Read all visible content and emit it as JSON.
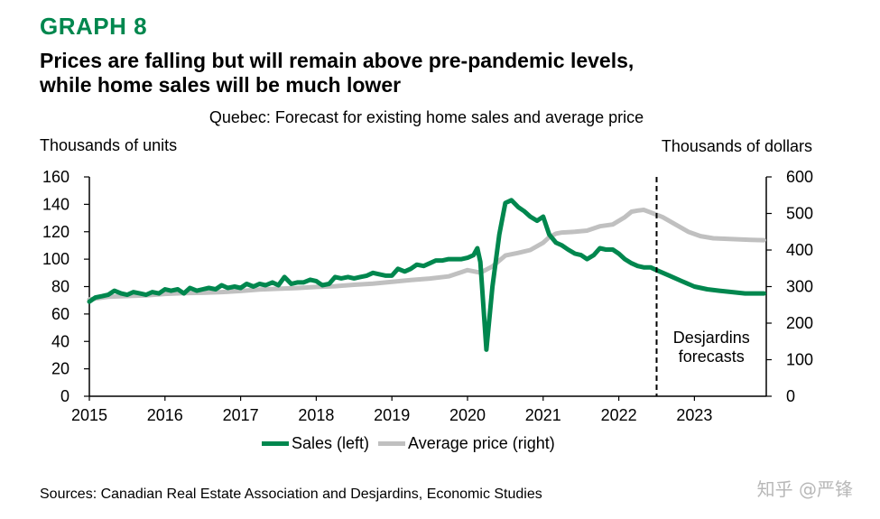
{
  "header": {
    "graph_label": "GRAPH 8",
    "title_line1": "Prices are falling but will remain above pre-pandemic levels,",
    "title_line2": "while home sales will be much lower"
  },
  "colors": {
    "sales": "#00874e",
    "price": "#c0c0c0",
    "green_title": "#00874e"
  },
  "chart_data": {
    "type": "line",
    "title": "Quebec: Forecast for existing home sales and average price",
    "ylabel_left": "Thousands of units",
    "ylabel_right": "Thousands of dollars",
    "ylim_left": [
      0,
      160
    ],
    "ylim_right": [
      0,
      600
    ],
    "yticks_left": [
      "0",
      "20",
      "40",
      "60",
      "80",
      "100",
      "120",
      "140",
      "160"
    ],
    "yticks_right": [
      "0",
      "100",
      "200",
      "300",
      "400",
      "500",
      "600"
    ],
    "xlim": [
      2015,
      2023.95
    ],
    "xticks": [
      "2015",
      "2016",
      "2017",
      "2018",
      "2019",
      "2020",
      "2021",
      "2022",
      "2023"
    ],
    "forecast_start": 2022.5,
    "forecast_label_line1": "Desjardins",
    "forecast_label_line2": "forecasts",
    "series": [
      {
        "name": "Sales (left)",
        "axis": "left",
        "points": [
          [
            2015.0,
            69
          ],
          [
            2015.08,
            72
          ],
          [
            2015.17,
            73
          ],
          [
            2015.25,
            74
          ],
          [
            2015.33,
            77
          ],
          [
            2015.42,
            75
          ],
          [
            2015.5,
            74
          ],
          [
            2015.58,
            76
          ],
          [
            2015.67,
            75
          ],
          [
            2015.75,
            74
          ],
          [
            2015.83,
            76
          ],
          [
            2015.92,
            75
          ],
          [
            2016.0,
            78
          ],
          [
            2016.08,
            77
          ],
          [
            2016.17,
            78
          ],
          [
            2016.25,
            75
          ],
          [
            2016.33,
            79
          ],
          [
            2016.42,
            77
          ],
          [
            2016.5,
            78
          ],
          [
            2016.58,
            79
          ],
          [
            2016.67,
            78
          ],
          [
            2016.75,
            81
          ],
          [
            2016.83,
            79
          ],
          [
            2016.92,
            80
          ],
          [
            2017.0,
            79
          ],
          [
            2017.08,
            82
          ],
          [
            2017.17,
            80
          ],
          [
            2017.25,
            82
          ],
          [
            2017.33,
            81
          ],
          [
            2017.42,
            83
          ],
          [
            2017.5,
            81
          ],
          [
            2017.58,
            87
          ],
          [
            2017.67,
            82
          ],
          [
            2017.75,
            83
          ],
          [
            2017.83,
            83
          ],
          [
            2017.92,
            85
          ],
          [
            2018.0,
            84
          ],
          [
            2018.08,
            81
          ],
          [
            2018.17,
            82
          ],
          [
            2018.25,
            87
          ],
          [
            2018.33,
            86
          ],
          [
            2018.42,
            87
          ],
          [
            2018.5,
            86
          ],
          [
            2018.58,
            87
          ],
          [
            2018.67,
            88
          ],
          [
            2018.75,
            90
          ],
          [
            2018.83,
            89
          ],
          [
            2018.92,
            88
          ],
          [
            2019.0,
            88
          ],
          [
            2019.08,
            93
          ],
          [
            2019.17,
            91
          ],
          [
            2019.25,
            93
          ],
          [
            2019.33,
            96
          ],
          [
            2019.42,
            95
          ],
          [
            2019.5,
            97
          ],
          [
            2019.58,
            99
          ],
          [
            2019.67,
            99
          ],
          [
            2019.75,
            100
          ],
          [
            2019.83,
            100
          ],
          [
            2019.92,
            100
          ],
          [
            2020.0,
            101
          ],
          [
            2020.08,
            103
          ],
          [
            2020.13,
            108
          ],
          [
            2020.17,
            98
          ],
          [
            2020.25,
            34
          ],
          [
            2020.33,
            80
          ],
          [
            2020.42,
            118
          ],
          [
            2020.5,
            141
          ],
          [
            2020.58,
            143
          ],
          [
            2020.67,
            138
          ],
          [
            2020.75,
            135
          ],
          [
            2020.83,
            131
          ],
          [
            2020.92,
            128
          ],
          [
            2021.0,
            131
          ],
          [
            2021.08,
            118
          ],
          [
            2021.17,
            112
          ],
          [
            2021.25,
            110
          ],
          [
            2021.33,
            107
          ],
          [
            2021.42,
            104
          ],
          [
            2021.5,
            103
          ],
          [
            2021.58,
            100
          ],
          [
            2021.67,
            103
          ],
          [
            2021.75,
            108
          ],
          [
            2021.83,
            107
          ],
          [
            2021.92,
            107
          ],
          [
            2022.0,
            104
          ],
          [
            2022.08,
            100
          ],
          [
            2022.17,
            97
          ],
          [
            2022.25,
            95
          ],
          [
            2022.33,
            94
          ],
          [
            2022.42,
            94
          ],
          [
            2022.5,
            92
          ],
          [
            2022.67,
            88
          ],
          [
            2022.83,
            84
          ],
          [
            2023.0,
            80
          ],
          [
            2023.17,
            78
          ],
          [
            2023.33,
            77
          ],
          [
            2023.5,
            76
          ],
          [
            2023.67,
            75
          ],
          [
            2023.92,
            75
          ]
        ]
      },
      {
        "name": "Average price (right)",
        "axis": "right",
        "points": [
          [
            2015.0,
            265
          ],
          [
            2015.25,
            272
          ],
          [
            2015.5,
            274
          ],
          [
            2015.75,
            276
          ],
          [
            2016.0,
            280
          ],
          [
            2016.25,
            282
          ],
          [
            2016.5,
            283
          ],
          [
            2016.75,
            285
          ],
          [
            2017.0,
            288
          ],
          [
            2017.25,
            292
          ],
          [
            2017.5,
            294
          ],
          [
            2017.75,
            296
          ],
          [
            2018.0,
            299
          ],
          [
            2018.25,
            301
          ],
          [
            2018.5,
            305
          ],
          [
            2018.75,
            308
          ],
          [
            2019.0,
            313
          ],
          [
            2019.25,
            318
          ],
          [
            2019.5,
            322
          ],
          [
            2019.75,
            328
          ],
          [
            2020.0,
            345
          ],
          [
            2020.17,
            338
          ],
          [
            2020.33,
            355
          ],
          [
            2020.5,
            385
          ],
          [
            2020.67,
            392
          ],
          [
            2020.83,
            400
          ],
          [
            2021.0,
            420
          ],
          [
            2021.08,
            435
          ],
          [
            2021.17,
            445
          ],
          [
            2021.25,
            448
          ],
          [
            2021.42,
            450
          ],
          [
            2021.58,
            453
          ],
          [
            2021.75,
            465
          ],
          [
            2021.92,
            470
          ],
          [
            2022.08,
            490
          ],
          [
            2022.17,
            505
          ],
          [
            2022.25,
            508
          ],
          [
            2022.33,
            510
          ],
          [
            2022.42,
            503
          ],
          [
            2022.58,
            490
          ],
          [
            2022.75,
            470
          ],
          [
            2022.92,
            450
          ],
          [
            2023.08,
            438
          ],
          [
            2023.25,
            432
          ],
          [
            2023.5,
            430
          ],
          [
            2023.75,
            428
          ],
          [
            2023.92,
            427
          ]
        ]
      }
    ]
  },
  "legend": {
    "sales": "Sales (left)",
    "price": "Average price (right)"
  },
  "footer": {
    "source": "Sources: Canadian Real Estate Association and Desjardins, Economic Studies",
    "watermark": "知乎 @严锋"
  }
}
